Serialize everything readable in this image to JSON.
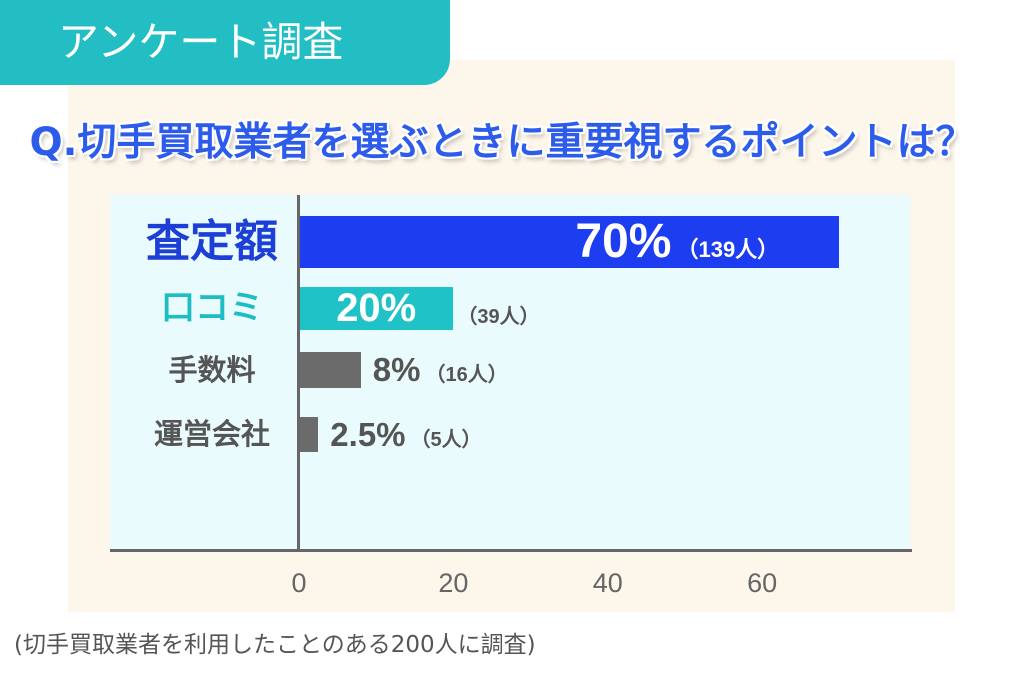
{
  "badge": "アンケート調査",
  "footnote": "(切手買取業者を利用したことのある200人に調査)",
  "theme": {
    "badge_bg": "#22bec4",
    "badge_text": "#ffffff",
    "title": "#2c5ce9",
    "panel_bg": "#fdf6ea",
    "plot_bg": "#e9fbfd",
    "axis": "#666666",
    "tick_text": "#666666",
    "footnote_text": "#555555"
  },
  "chart_data": {
    "type": "bar",
    "orientation": "horizontal",
    "title": "Q.切手買取業者を選ぶときに重要視するポイントは？",
    "categories": [
      "査定額",
      "口コミ",
      "手数料",
      "運営会社"
    ],
    "values": [
      70,
      20,
      8,
      2.5
    ],
    "value_labels": [
      "70%",
      "20%",
      "8%",
      "2.5%"
    ],
    "count_labels": [
      "（139人）",
      "（39人）",
      "（16人）",
      "（5人）"
    ],
    "x_ticks": [
      0,
      20,
      40,
      60
    ],
    "xlim": [
      0,
      78
    ],
    "grid": false,
    "bar_colors": [
      "#1c3df0",
      "#1fc2c7",
      "#6b6b6b",
      "#6b6b6b"
    ],
    "category_colors": [
      "#1e3fd6",
      "#1dbdc3",
      "#555555",
      "#555555"
    ]
  }
}
